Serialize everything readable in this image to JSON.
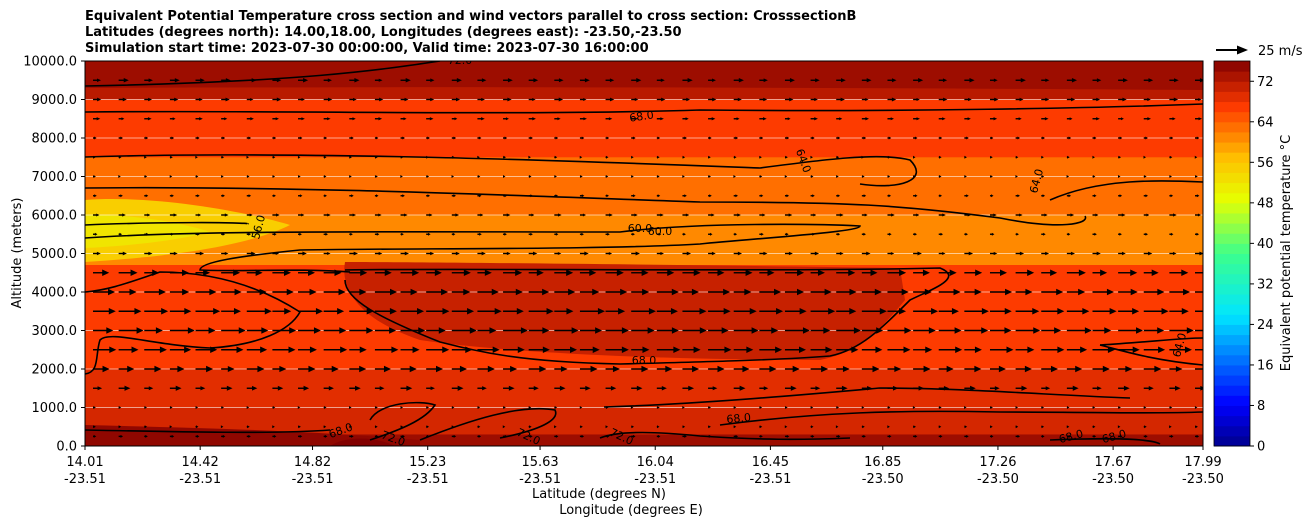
{
  "title_lines": [
    "Equivalent Potential Temperature cross section and wind vectors parallel to cross section: CrosssectionB",
    "Latitudes (degrees north): 14.00,18.00, Longitudes (degrees east): -23.50,-23.50",
    "Simulation start time: 2023-07-30 00:00:00, Valid time: 2023-07-30 16:00:00"
  ],
  "chart_data": {
    "type": "heatmap",
    "subtype": "filled-contour cross section with wind vectors",
    "ylabel": "Altitude (meters)",
    "xlabel_lines": [
      "Latitude (degrees N)",
      "Longitude (degrees E)"
    ],
    "ylim": [
      0,
      10000
    ],
    "y_ticks": [
      "0.0",
      "1000.0",
      "2000.0",
      "3000.0",
      "4000.0",
      "5000.0",
      "6000.0",
      "7000.0",
      "8000.0",
      "9000.0",
      "10000.0"
    ],
    "x_ticks": [
      {
        "lat": "14.01",
        "lon": "-23.51"
      },
      {
        "lat": "14.42",
        "lon": "-23.51"
      },
      {
        "lat": "14.82",
        "lon": "-23.51"
      },
      {
        "lat": "15.23",
        "lon": "-23.51"
      },
      {
        "lat": "15.63",
        "lon": "-23.51"
      },
      {
        "lat": "16.04",
        "lon": "-23.51"
      },
      {
        "lat": "16.45",
        "lon": "-23.51"
      },
      {
        "lat": "16.85",
        "lon": "-23.50"
      },
      {
        "lat": "17.26",
        "lon": "-23.50"
      },
      {
        "lat": "17.67",
        "lon": "-23.50"
      },
      {
        "lat": "17.99",
        "lon": "-23.50"
      }
    ],
    "grid": "horizontal lines at y ticks",
    "colorbar": {
      "label": "Equivalent potential temperature °C",
      "range": [
        0,
        76
      ],
      "ticks": [
        "0",
        "8",
        "16",
        "24",
        "32",
        "40",
        "48",
        "56",
        "64",
        "72"
      ],
      "colormap": "jet-like: dark blue → blue → cyan → green → yellow → orange → red → dark red"
    },
    "field_regions_degC": [
      {
        "region": "surface layer 0-300 m",
        "value": 74
      },
      {
        "region": "lowest 300-1000 m",
        "value": 70
      },
      {
        "region": "1000-2000 m",
        "value": 69
      },
      {
        "region": "2000-4700 m (north half)",
        "value": 70
      },
      {
        "region": "2000-4700 m (south)",
        "value": 66
      },
      {
        "region": "5000-6000 m (south)",
        "value": 55
      },
      {
        "region": "5000-6000 m",
        "value": 60
      },
      {
        "region": "6000-7500 m",
        "value": 63
      },
      {
        "region": "7500-9000 m",
        "value": 67
      },
      {
        "region": "9000-10000 m",
        "value": 72
      }
    ],
    "contour_labels": [
      "72.0",
      "68.0",
      "64.0",
      "56.0",
      "60.0",
      "60.0",
      "68.0",
      "64.0",
      "64.0",
      "68.0",
      "68.0",
      "72.0",
      "72.0",
      "72.0",
      "68.0",
      "68.0"
    ],
    "wind": {
      "direction": "parallel to cross section, toward increasing latitude (eastward arrows)",
      "reference": {
        "speed": 25,
        "unit": "m/s",
        "label": "25 m/s"
      },
      "levels_m": [
        250,
        500,
        1000,
        1500,
        2000,
        2500,
        3000,
        3500,
        4000,
        4500,
        5000,
        5500,
        6000,
        6500,
        7000,
        7500,
        8000,
        8500,
        9000,
        9500
      ],
      "speed_by_level_ms": [
        3,
        2,
        2,
        8,
        12,
        16,
        17,
        17,
        15,
        13,
        6,
        3,
        5,
        3,
        2,
        2,
        3,
        5,
        6,
        7
      ]
    }
  }
}
